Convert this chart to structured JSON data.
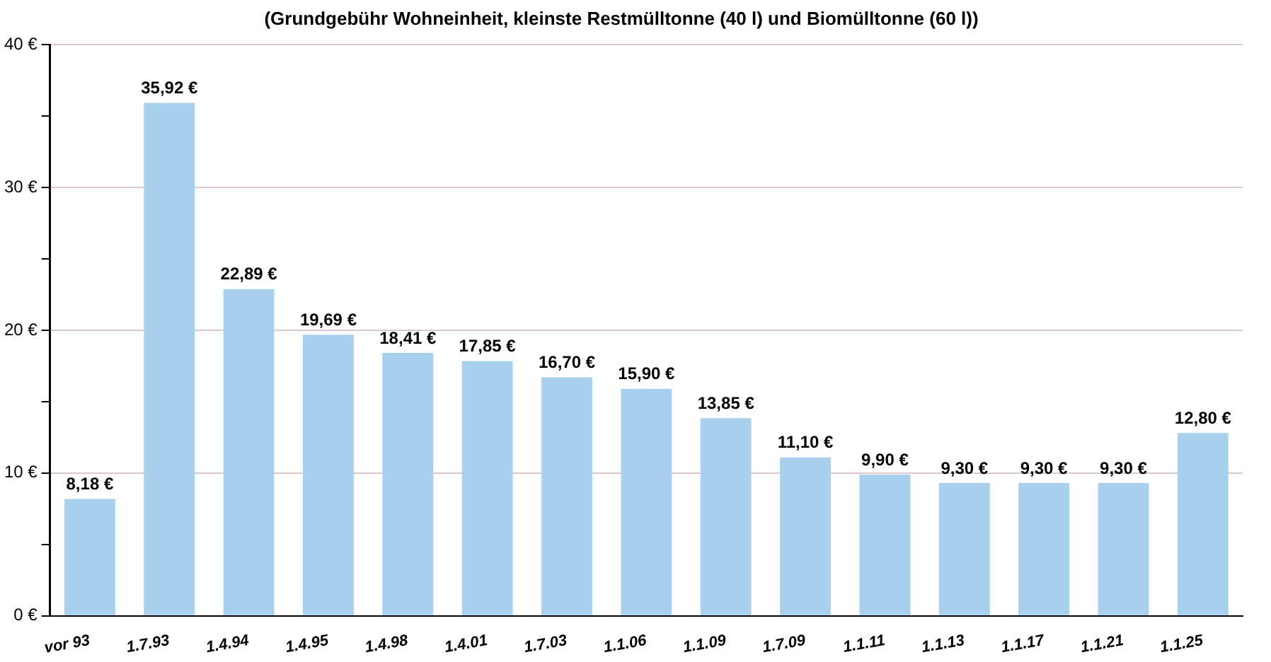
{
  "chart_data": {
    "type": "bar",
    "title": "(Grundgebühr Wohneinheit, kleinste Restmülltonne (40 l) und Biomülltonne (60 l))",
    "categories": [
      "vor 93",
      "1.7.93",
      "1.4.94",
      "1.4.95",
      "1.4.98",
      "1.4.01",
      "1.7.03",
      "1.1.06",
      "1.1.09",
      "1.7.09",
      "1.1.11",
      "1.1.13",
      "1.1.17",
      "1.1.21",
      "1.1.25"
    ],
    "values": [
      8.18,
      35.92,
      22.89,
      19.69,
      18.41,
      17.85,
      16.7,
      15.9,
      13.85,
      11.1,
      9.9,
      9.3,
      9.3,
      9.3,
      12.8
    ],
    "value_labels": [
      "8,18 €",
      "35,92 €",
      "22,89 €",
      "19,69 €",
      "18,41 €",
      "17,85 €",
      "16,70 €",
      "15,90 €",
      "13,85 €",
      "11,10 €",
      "9,90 €",
      "9,30 €",
      "9,30 €",
      "9,30 €",
      "12,80 €"
    ],
    "color": "#a9d0ec",
    "ylim": [
      0,
      40
    ],
    "yticks": [
      {
        "value": 0,
        "label": "0 €"
      },
      {
        "value": 5,
        "label": null
      },
      {
        "value": 10,
        "label": "10 €"
      },
      {
        "value": 15,
        "label": null
      },
      {
        "value": 20,
        "label": "20 €"
      },
      {
        "value": 25,
        "label": null
      },
      {
        "value": 30,
        "label": "30 €"
      },
      {
        "value": 35,
        "label": null
      },
      {
        "value": 40,
        "label": "40 €"
      }
    ],
    "grid": "y",
    "legend": false
  }
}
